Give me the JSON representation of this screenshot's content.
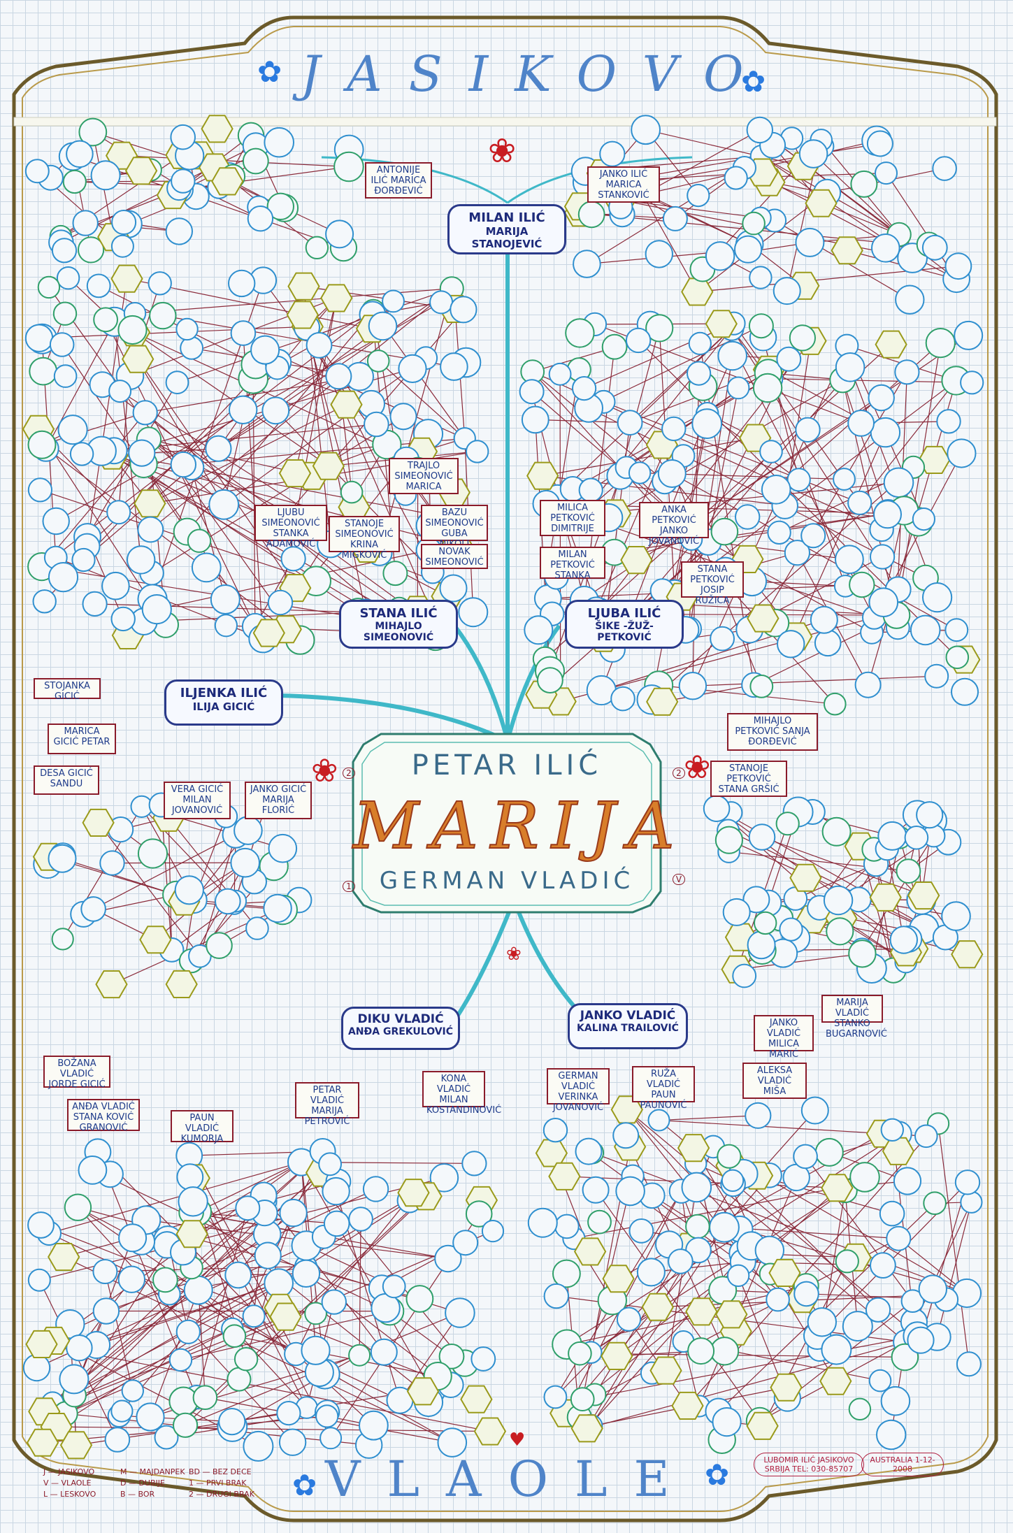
{
  "title_top": "JASIKOVO",
  "title_bottom": "VLAOLE",
  "center": {
    "line1": "PETAR ILIĆ",
    "line2": "MARIJA",
    "line3": "GERMAN VLADIĆ",
    "mark_left": "2",
    "mark_right": "2",
    "mark_bottom_left": "1",
    "mark_bottom_right": "V"
  },
  "couples": [
    {
      "id": "milan",
      "a": "MILAN ILIĆ",
      "b": "MARIJA STANOJEVIĆ"
    },
    {
      "id": "stana",
      "a": "STANA ILIĆ",
      "b": "MIHAJLO SIMEONOVIĆ"
    },
    {
      "id": "ljuba",
      "a": "LJUBA ILIĆ",
      "b": "ŠIKE -ŽUŽ- PETKOVIĆ"
    },
    {
      "id": "iljenka",
      "a": "ILJENKA ILIĆ",
      "b": "ILIJA GICIĆ"
    },
    {
      "id": "diku",
      "a": "DIKU VLADIĆ",
      "b": "ANĐA GREKULOVIĆ"
    },
    {
      "id": "janko",
      "a": "JANKO VLADIĆ",
      "b": "KALINA TRAILOVIĆ"
    }
  ],
  "boxes": [
    {
      "id": "antonije",
      "text": "ANTONIJE ILIĆ MARICA ĐORĐEVIĆ"
    },
    {
      "id": "janko-ilic",
      "text": "JANKO ILIĆ MARICA STANKOVIĆ"
    },
    {
      "id": "ljubu",
      "text": "LJUBU SIMEONOVIĆ STANKA ADAMOVIĆ"
    },
    {
      "id": "stanoje",
      "text": "STANOJE SIMEONOVIĆ KRINA MIGKOVIĆ"
    },
    {
      "id": "trajlo",
      "text": "TRAJLO SIMEONOVIĆ MARICA"
    },
    {
      "id": "bazu",
      "text": "BAZU SIMEONOVIĆ GUBA NIKOLI"
    },
    {
      "id": "novak",
      "text": "NOVAK SIMEONOVIĆ"
    },
    {
      "id": "milica",
      "text": "MILICA PETKOVIĆ DIMITRIJE"
    },
    {
      "id": "milan-p",
      "text": "MILAN PETKOVIĆ STANKA"
    },
    {
      "id": "anka",
      "text": "ANKA PETKOVIĆ JANKO JOVANOVIĆ"
    },
    {
      "id": "stana-p",
      "text": "STANA PETKOVIĆ JOSIP RUŽICA"
    },
    {
      "id": "mihajlo-p",
      "text": "MIHAJLO PETKOVIĆ SANJA ĐORĐEVIĆ"
    },
    {
      "id": "stanoje-p",
      "text": "STANOJE PETKOVIĆ STANA GRŠIĆ"
    },
    {
      "id": "stojanka",
      "text": "STOJANKA GICIĆ"
    },
    {
      "id": "marica-g",
      "text": "MARICA GICIĆ PETAR"
    },
    {
      "id": "desa",
      "text": "DESA GICIĆ SANDU"
    },
    {
      "id": "vera",
      "text": "VERA GICIĆ MILAN JOVANOVIĆ"
    },
    {
      "id": "janko-g",
      "text": "JANKO GICIĆ MARIJA FLORIĆ"
    },
    {
      "id": "bozana",
      "text": "BOŽANA VLADIĆ JORDE GICIĆ"
    },
    {
      "id": "anda-v",
      "text": "ANĐA VLADIĆ STANA KOVIĆ GRANOVIĆ"
    },
    {
      "id": "paun",
      "text": "PAUN VLADIĆ KUMORJA"
    },
    {
      "id": "petar-v",
      "text": "PETAR VLADIĆ MARIJA PETROVIĆ"
    },
    {
      "id": "kona",
      "text": "KONA VLADIĆ MILAN KOSTANDINOVIĆ"
    },
    {
      "id": "german-v",
      "text": "GERMAN VLADIĆ VERINKA JOVANOVIĆ"
    },
    {
      "id": "ruza-v",
      "text": "RUŽA VLADIĆ PAUN PAUNOVIĆ"
    },
    {
      "id": "aleksa",
      "text": "ALEKSA VLADIĆ MIŠA"
    },
    {
      "id": "janko-v2",
      "text": "JANKO VLADIĆ MILICA MARIĆ"
    },
    {
      "id": "marija-v",
      "text": "MARIJA VLADIĆ STANKO BUGARNOVIĆ"
    }
  ],
  "legend": [
    "J — JASIKOVO",
    "V — VLAOLE",
    "L — LESKOVO",
    "M — MAJDANPEK",
    "D — DUBIJE",
    "B — BOR",
    "BD — BEZ DECE",
    "1 — PRVI BRAK",
    "2 — DRUGI BRAK"
  ],
  "stamp_author": "LUBOMIR ILIĆ JASIKOVO SRBIJA TEL: 030-85707",
  "stamp_place": "AUSTRALIA 1-12-2008"
}
